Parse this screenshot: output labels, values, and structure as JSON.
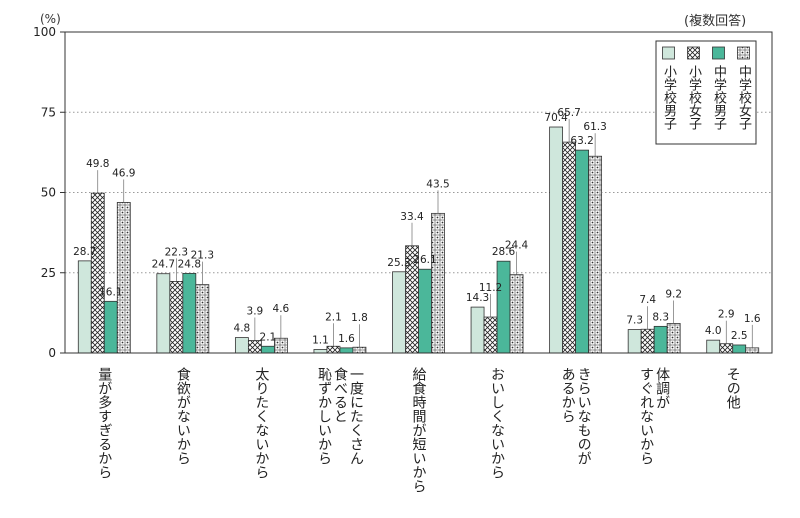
{
  "chart_data": {
    "type": "bar",
    "unit_label": "(%)",
    "note": "(複数回答)",
    "ylim": [
      0,
      100
    ],
    "yticks": [
      0,
      25,
      50,
      75,
      100
    ],
    "categories": [
      "量が多すぎるから",
      "食欲がないから",
      "太りたくないから",
      "一度にたくさん食べると恥ずかしいから",
      "給食時間が短いから",
      "おいしくないから",
      "きらいなものがあるから",
      "体調がすぐれないから",
      "その他"
    ],
    "category_lines": [
      [
        "量が多すぎるから"
      ],
      [
        "食欲がないから"
      ],
      [
        "太りたくないから"
      ],
      [
        "一度にたくさん",
        "食べると",
        "恥ずかしいから"
      ],
      [
        "給食時間が短いから"
      ],
      [
        "おいしくないから"
      ],
      [
        "きらいなものが",
        "あるから"
      ],
      [
        "体調が",
        "すぐれないから"
      ],
      [
        "その他"
      ]
    ],
    "series": [
      {
        "name": "小学校男子",
        "values": [
          28.7,
          24.7,
          4.8,
          1.1,
          25.3,
          14.3,
          70.4,
          7.3,
          4.0
        ]
      },
      {
        "name": "小学校女子",
        "values": [
          49.8,
          22.3,
          3.9,
          2.1,
          33.4,
          11.2,
          65.7,
          7.4,
          2.9
        ]
      },
      {
        "name": "中学校男子",
        "values": [
          16.1,
          24.8,
          2.1,
          1.6,
          26.1,
          28.6,
          63.2,
          8.3,
          2.5
        ]
      },
      {
        "name": "中学校女子",
        "values": [
          46.9,
          21.3,
          4.6,
          1.8,
          43.5,
          24.4,
          61.3,
          9.2,
          1.6
        ]
      }
    ],
    "value_labels": [
      [
        "28.7",
        "24.7",
        "4.8",
        "1.1",
        "25.3",
        "14.3",
        "70.4",
        "7.3",
        "4.0"
      ],
      [
        "49.8",
        "22.3",
        "3.9",
        "2.1",
        "33.4",
        "11.2",
        "65.7",
        "7.4",
        "2.9"
      ],
      [
        "16.1",
        "24.8",
        "2.1",
        "1.6",
        "26.1",
        "28.6",
        "63.2",
        "8.3",
        "2.5"
      ],
      [
        "46.9",
        "21.3",
        "4.6",
        "1.8",
        "43.5",
        "24.4",
        "61.3",
        "9.2",
        "1.6"
      ]
    ],
    "colors": {
      "primary_elem_boys": "#cfe7dc",
      "junior_high_boys": "#4bb79a",
      "outline": "#333333",
      "grid": "#9a9a9a"
    },
    "legend_position": "top-right",
    "grid": "dotted-horizontal"
  }
}
